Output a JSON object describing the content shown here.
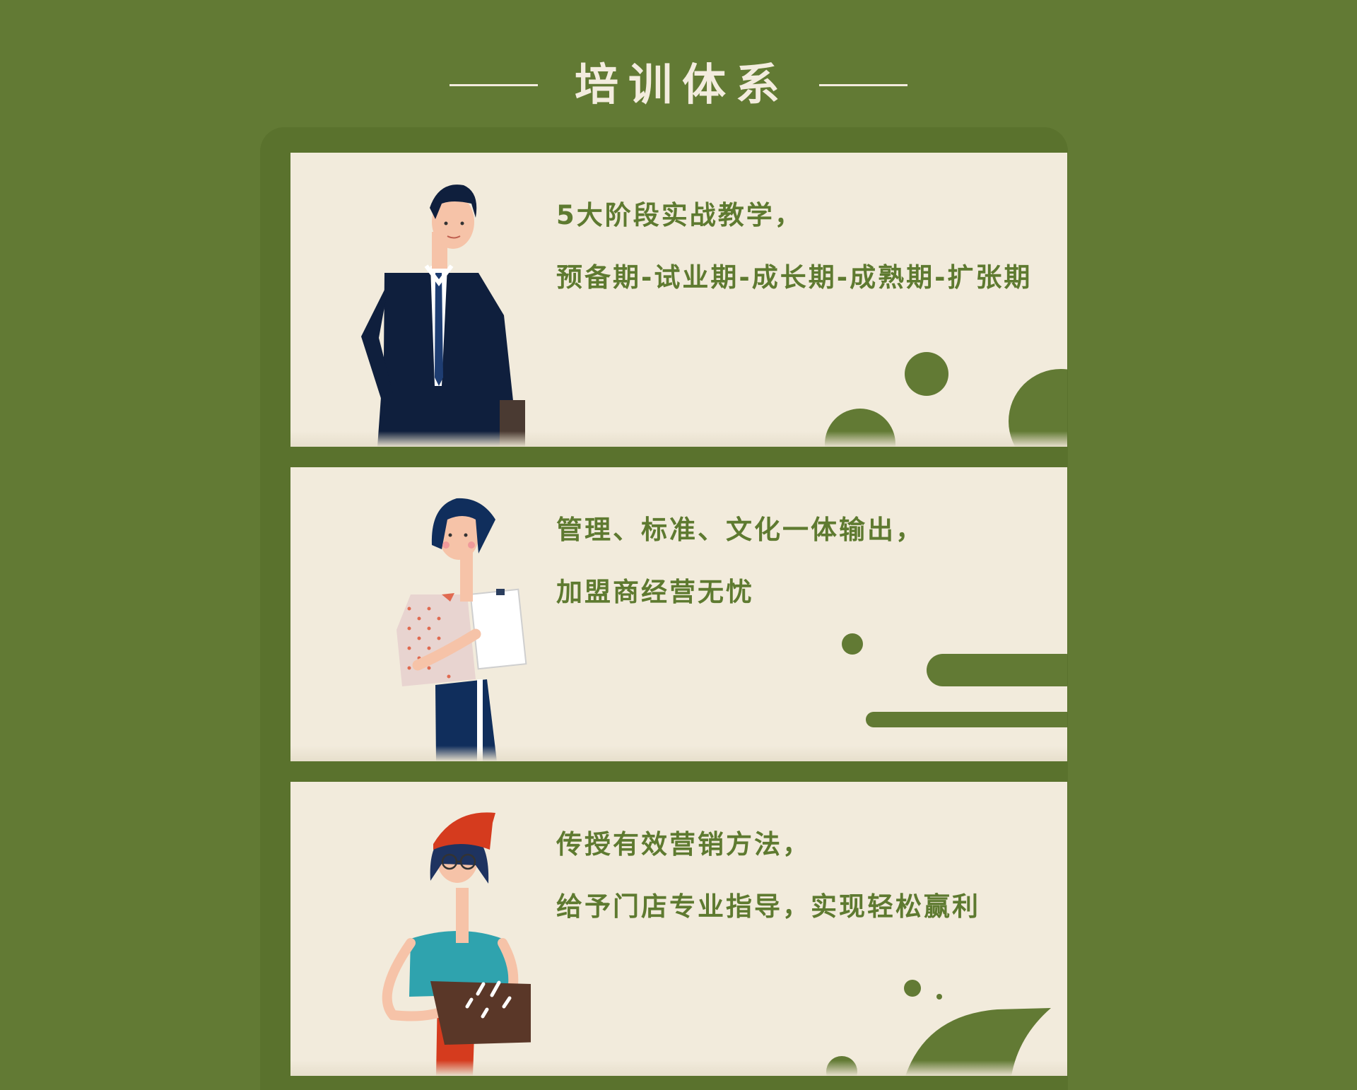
{
  "header": {
    "title": "培训体系"
  },
  "cards": [
    {
      "line1": "5大阶段实战教学，",
      "line2": "预备期-试业期-成长期-成熟期-扩张期"
    },
    {
      "line1": "管理、标准、文化一体输出，",
      "line2": "加盟商经营无忧"
    },
    {
      "line1": "传授有效营销方法，",
      "line2": "给予门店专业指导，实现轻松赢利"
    }
  ],
  "colors": {
    "background": "#627a34",
    "frame": "#5a722d",
    "card": "#f2ebdc",
    "text": "#5e7a30",
    "title": "#f3ecde"
  }
}
